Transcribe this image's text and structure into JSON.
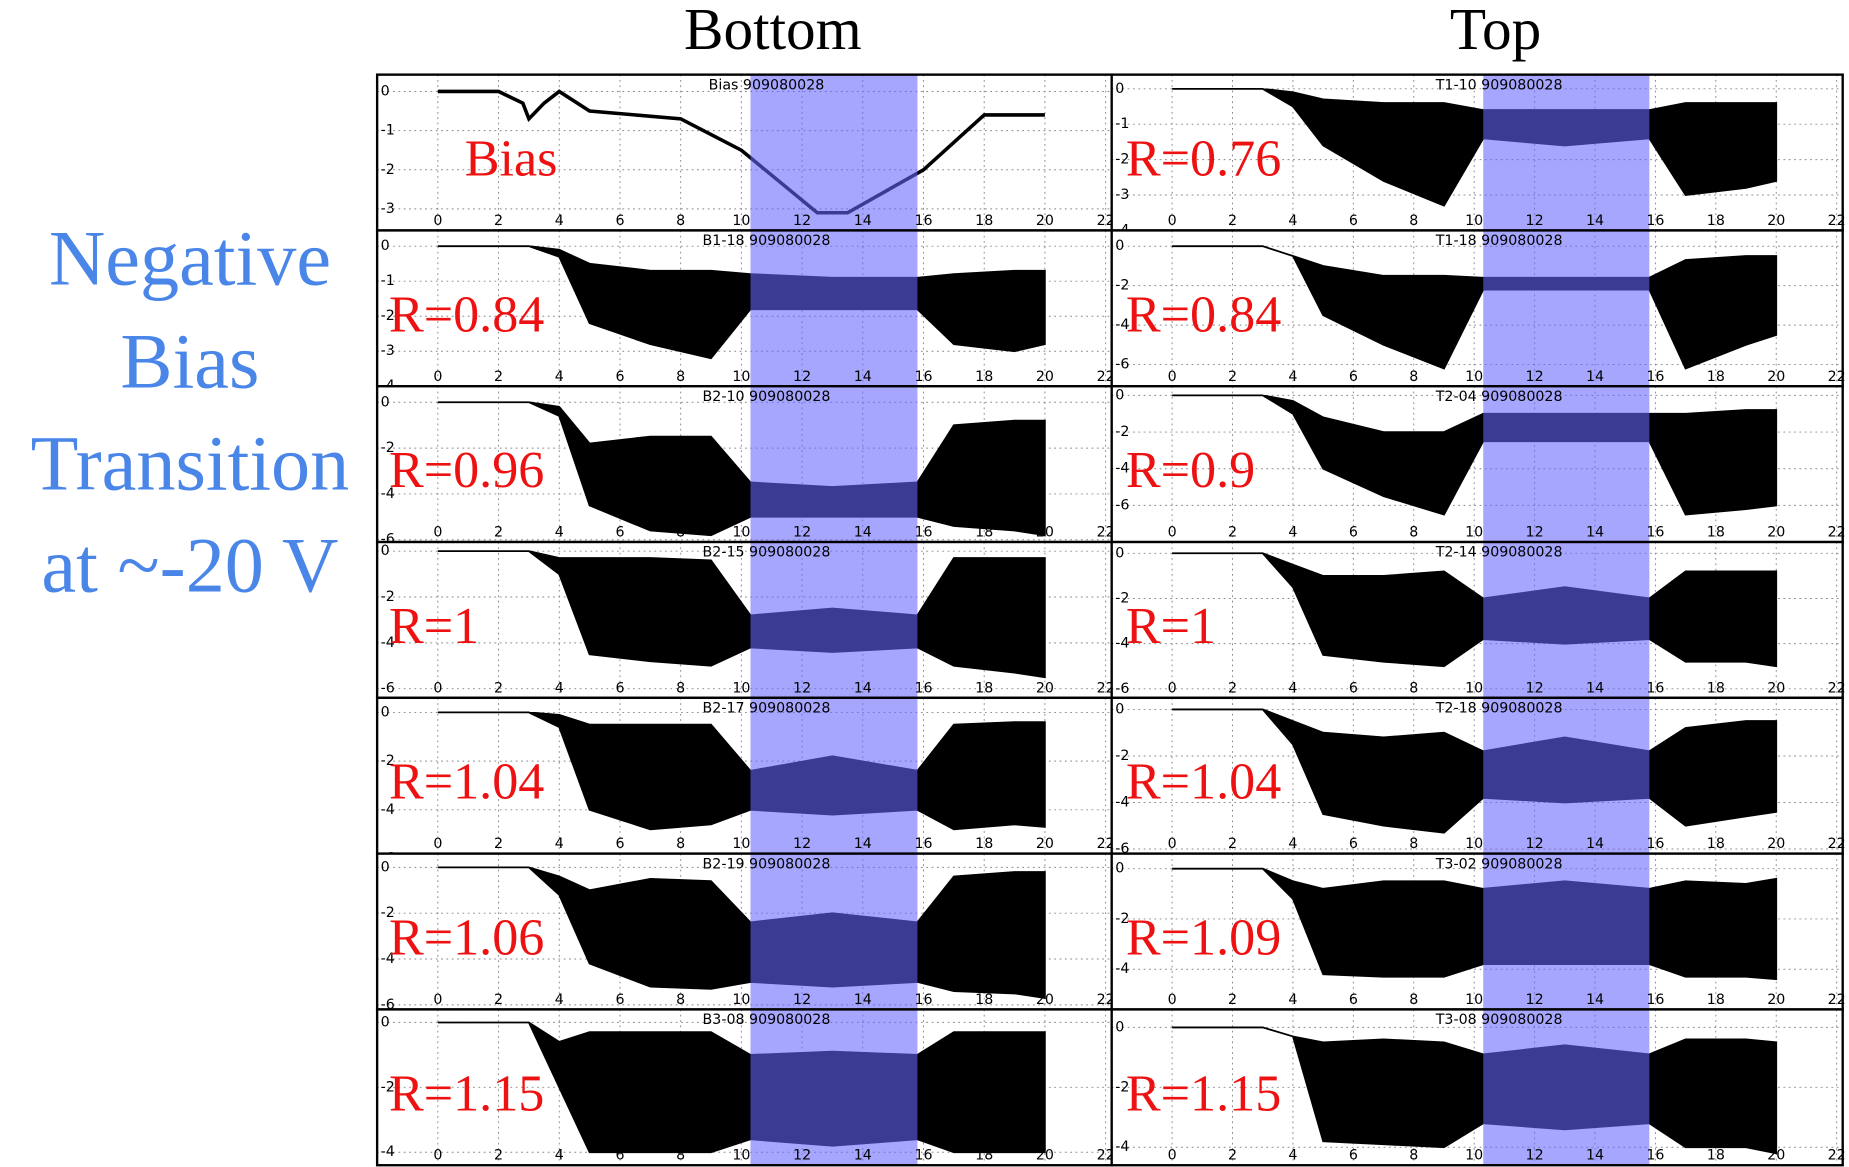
{
  "title_left": [
    "Negative",
    "Bias",
    "Transition",
    "at ~-20 V"
  ],
  "column_titles": [
    "Bottom",
    "Top"
  ],
  "chart_data": [
    {
      "type": "line",
      "title": "Bias 909080028",
      "annotation": "Bias",
      "color": "#000000",
      "grid": true,
      "shade": [
        10.3,
        15.8
      ],
      "shade_color": "#6666ff",
      "x": [
        0,
        2,
        2.8,
        3,
        3.5,
        4,
        5,
        8,
        10,
        12.5,
        13.5,
        16,
        18,
        20
      ],
      "values": [
        0,
        0,
        -0.3,
        -0.7,
        -0.3,
        0,
        -0.5,
        -0.7,
        -1.5,
        -3.1,
        -3.1,
        -2.0,
        -0.6,
        -0.6
      ],
      "xlim": [
        -2,
        22.2
      ],
      "xticks": [
        0,
        2,
        4,
        6,
        8,
        10,
        12,
        14,
        16,
        18,
        20,
        22
      ],
      "ylim": [
        -3.55,
        0.43
      ],
      "yticks": [
        0,
        -1,
        -2,
        -3
      ]
    },
    {
      "type": "band",
      "title": "B1-18 909080028",
      "annotation": "R=0.84",
      "color": "#000000",
      "grid": true,
      "shade": [
        10.3,
        15.8
      ],
      "shade_color": "#6666ff",
      "x": [
        0,
        3,
        4,
        5,
        7,
        9,
        10.3,
        13,
        15.8,
        17,
        19,
        20
      ],
      "high": [
        0,
        0,
        -0.1,
        -0.5,
        -0.7,
        -0.7,
        -0.8,
        -0.9,
        -0.9,
        -0.8,
        -0.7,
        -0.7
      ],
      "low": [
        0,
        0,
        -0.3,
        -2.2,
        -2.8,
        -3.2,
        -1.8,
        -1.8,
        -1.8,
        -2.8,
        -3.0,
        -2.8
      ],
      "xlim": [
        -2,
        22.2
      ],
      "xticks": [
        0,
        2,
        4,
        6,
        8,
        10,
        12,
        14,
        16,
        18,
        20,
        22
      ],
      "ylim": [
        -4,
        0.45
      ],
      "yticks": [
        0,
        -1,
        -2,
        -3,
        -4
      ]
    },
    {
      "type": "band",
      "title": "B2-10 909080028",
      "annotation": "R=0.96",
      "color": "#000000",
      "grid": true,
      "shade": [
        10.3,
        15.8
      ],
      "shade_color": "#6666ff",
      "x": [
        0,
        3,
        4,
        5,
        7,
        9,
        10.3,
        13,
        15.8,
        17,
        19,
        20
      ],
      "high": [
        0,
        0,
        -0.2,
        -1.8,
        -1.5,
        -1.5,
        -3.5,
        -3.7,
        -3.5,
        -1.0,
        -0.8,
        -0.8
      ],
      "low": [
        0,
        0,
        -0.6,
        -4.5,
        -5.6,
        -5.8,
        -5.0,
        -5.0,
        -5.0,
        -5.4,
        -5.6,
        -5.8
      ],
      "xlim": [
        -2,
        22.2
      ],
      "xticks": [
        0,
        2,
        4,
        6,
        8,
        10,
        12,
        14,
        16,
        18,
        20,
        22
      ],
      "ylim": [
        -6.1,
        0.7
      ],
      "yticks": [
        0,
        -2,
        -4,
        -6
      ]
    },
    {
      "type": "band",
      "title": "B2-15 909080028",
      "annotation": "R=1",
      "color": "#000000",
      "grid": true,
      "shade": [
        10.3,
        15.8
      ],
      "shade_color": "#6666ff",
      "x": [
        0,
        3,
        4,
        5,
        7,
        9,
        10.3,
        13,
        15.8,
        17,
        19,
        20
      ],
      "high": [
        0,
        0,
        -0.3,
        -0.3,
        -0.3,
        -0.4,
        -2.8,
        -2.5,
        -2.8,
        -0.3,
        -0.3,
        -0.3
      ],
      "low": [
        0,
        0,
        -1.0,
        -4.5,
        -4.8,
        -5.0,
        -4.2,
        -4.4,
        -4.2,
        -5.0,
        -5.3,
        -5.5
      ],
      "xlim": [
        -2,
        22.2
      ],
      "xticks": [
        0,
        2,
        4,
        6,
        8,
        10,
        12,
        14,
        16,
        18,
        20,
        22
      ],
      "ylim": [
        -6.4,
        0.4
      ],
      "yticks": [
        0,
        -2,
        -4,
        -6
      ]
    },
    {
      "type": "band",
      "title": "B2-17 909080028",
      "annotation": "R=1.04",
      "color": "#000000",
      "grid": true,
      "shade": [
        10.3,
        15.8
      ],
      "shade_color": "#6666ff",
      "x": [
        0,
        3,
        4,
        5,
        7,
        9,
        10.3,
        13,
        15.8,
        17,
        19,
        20
      ],
      "high": [
        0,
        0,
        -0.1,
        -0.5,
        -0.5,
        -0.5,
        -2.4,
        -1.8,
        -2.4,
        -0.5,
        -0.4,
        -0.4
      ],
      "low": [
        0,
        0,
        -0.6,
        -4.0,
        -4.8,
        -4.6,
        -4.0,
        -4.2,
        -4.0,
        -4.8,
        -4.6,
        -4.7
      ],
      "xlim": [
        -2,
        22.2
      ],
      "xticks": [
        0,
        2,
        4,
        6,
        8,
        10,
        12,
        14,
        16,
        18,
        20,
        22
      ],
      "ylim": [
        -5.8,
        0.6
      ],
      "yticks": [
        0,
        -2,
        -4,
        -6
      ]
    },
    {
      "type": "band",
      "title": "B2-19 909080028",
      "annotation": "R=1.06",
      "color": "#000000",
      "grid": true,
      "shade": [
        10.3,
        15.8
      ],
      "shade_color": "#6666ff",
      "x": [
        0,
        3,
        4,
        5,
        7,
        9,
        10.3,
        13,
        15.8,
        17,
        19,
        20
      ],
      "high": [
        0,
        0,
        -0.4,
        -1.0,
        -0.5,
        -0.6,
        -2.4,
        -2.0,
        -2.4,
        -0.4,
        -0.2,
        -0.2
      ],
      "low": [
        0,
        0,
        -1.2,
        -4.2,
        -5.2,
        -5.3,
        -5.0,
        -5.2,
        -5.0,
        -5.4,
        -5.5,
        -5.7
      ],
      "xlim": [
        -2,
        22.2
      ],
      "xticks": [
        0,
        2,
        4,
        6,
        8,
        10,
        12,
        14,
        16,
        18,
        20,
        22
      ],
      "ylim": [
        -6.2,
        0.6
      ],
      "yticks": [
        0,
        -2,
        -4,
        -6
      ]
    },
    {
      "type": "band",
      "title": "B3-08 909080028",
      "annotation": "R=1.15",
      "color": "#000000",
      "grid": true,
      "shade": [
        10.3,
        15.8
      ],
      "shade_color": "#6666ff",
      "x": [
        0,
        3,
        4,
        5,
        7,
        9,
        10.3,
        13,
        15.8,
        17,
        19,
        20
      ],
      "high": [
        0,
        0,
        -0.6,
        -0.3,
        -0.3,
        -0.3,
        -1.0,
        -0.9,
        -1.0,
        -0.3,
        -0.3,
        -0.3
      ],
      "low": [
        0,
        0,
        -2.0,
        -4.0,
        -4.0,
        -4.0,
        -3.6,
        -3.8,
        -3.6,
        -4.0,
        -4.0,
        -4.0
      ],
      "xlim": [
        -2,
        22.2
      ],
      "xticks": [
        0,
        2,
        4,
        6,
        8,
        10,
        12,
        14,
        16,
        18,
        20,
        22
      ],
      "ylim": [
        -4.4,
        0.4
      ],
      "yticks": [
        0,
        -2,
        -4
      ]
    },
    {
      "type": "band",
      "title": "T1-10 909080028",
      "annotation": "R=0.76",
      "color": "#000000",
      "grid": true,
      "shade": [
        10.3,
        15.8
      ],
      "shade_color": "#6666ff",
      "x": [
        0,
        3,
        4,
        5,
        7,
        9,
        10.3,
        13,
        15.8,
        17,
        19,
        20
      ],
      "high": [
        0,
        0,
        -0.1,
        -0.3,
        -0.4,
        -0.4,
        -0.6,
        -0.6,
        -0.6,
        -0.4,
        -0.4,
        -0.4
      ],
      "low": [
        0,
        0,
        -0.5,
        -1.6,
        -2.6,
        -3.3,
        -1.4,
        -1.6,
        -1.4,
        -3.0,
        -2.8,
        -2.6
      ],
      "xlim": [
        -2,
        22.2
      ],
      "xticks": [
        0,
        2,
        4,
        6,
        8,
        10,
        12,
        14,
        16,
        18,
        20,
        22
      ],
      "ylim": [
        -4,
        0.4
      ],
      "yticks": [
        0,
        -1,
        -2,
        -3,
        -4
      ]
    },
    {
      "type": "band",
      "title": "T1-18 909080028",
      "annotation": "R=0.84",
      "color": "#000000",
      "grid": true,
      "shade": [
        10.3,
        15.8
      ],
      "shade_color": "#6666ff",
      "x": [
        0,
        3,
        4,
        5,
        7,
        9,
        10.3,
        13,
        15.8,
        17,
        19,
        20
      ],
      "high": [
        0,
        0,
        -0.5,
        -1.0,
        -1.5,
        -1.5,
        -1.6,
        -1.6,
        -1.6,
        -0.7,
        -0.5,
        -0.5
      ],
      "low": [
        0,
        0,
        -0.5,
        -3.5,
        -5.0,
        -6.2,
        -2.2,
        -2.2,
        -2.2,
        -6.2,
        -5.0,
        -4.5
      ],
      "xlim": [
        -2,
        22.2
      ],
      "xticks": [
        0,
        2,
        4,
        6,
        8,
        10,
        12,
        14,
        16,
        18,
        20,
        22
      ],
      "ylim": [
        -7.1,
        0.8
      ],
      "yticks": [
        0,
        -2,
        -4,
        -6
      ]
    },
    {
      "type": "band",
      "title": "T2-04 909080028",
      "annotation": "R=0.9",
      "color": "#000000",
      "grid": true,
      "shade": [
        10.3,
        15.8
      ],
      "shade_color": "#6666ff",
      "x": [
        0,
        3,
        4,
        5,
        7,
        9,
        10.3,
        13,
        15.8,
        17,
        19,
        20
      ],
      "high": [
        0,
        0,
        -0.3,
        -1.2,
        -2.0,
        -2.0,
        -1.0,
        -1.0,
        -1.0,
        -1.0,
        -0.8,
        -0.8
      ],
      "low": [
        0,
        0,
        -1.0,
        -4.0,
        -5.5,
        -6.5,
        -2.5,
        -2.5,
        -2.5,
        -6.5,
        -6.2,
        -6.0
      ],
      "xlim": [
        -2,
        22.2
      ],
      "xticks": [
        0,
        2,
        4,
        6,
        8,
        10,
        12,
        14,
        16,
        18,
        20,
        22
      ],
      "ylim": [
        -8,
        0.5
      ],
      "yticks": [
        0,
        -2,
        -4,
        -6
      ]
    },
    {
      "type": "band",
      "title": "T2-14 909080028",
      "annotation": "R=1",
      "color": "#000000",
      "grid": true,
      "shade": [
        10.3,
        15.8
      ],
      "shade_color": "#6666ff",
      "x": [
        0,
        3,
        4,
        5,
        7,
        9,
        10.3,
        13,
        15.8,
        17,
        19,
        20
      ],
      "high": [
        0,
        0,
        -0.5,
        -1.0,
        -1.0,
        -0.8,
        -2.0,
        -1.5,
        -2.0,
        -0.8,
        -0.8,
        -0.8
      ],
      "low": [
        0,
        0,
        -1.5,
        -4.5,
        -4.8,
        -5.0,
        -3.8,
        -4.0,
        -3.8,
        -4.8,
        -4.8,
        -5.0
      ],
      "xlim": [
        -2,
        22.2
      ],
      "xticks": [
        0,
        2,
        4,
        6,
        8,
        10,
        12,
        14,
        16,
        18,
        20,
        22
      ],
      "ylim": [
        -6.4,
        0.5
      ],
      "yticks": [
        0,
        -2,
        -4,
        -6
      ]
    },
    {
      "type": "band",
      "title": "T2-18 909080028",
      "annotation": "R=1.04",
      "color": "#000000",
      "grid": true,
      "shade": [
        10.3,
        15.8
      ],
      "shade_color": "#6666ff",
      "x": [
        0,
        3,
        4,
        5,
        7,
        9,
        10.3,
        13,
        15.8,
        17,
        19,
        20
      ],
      "high": [
        0,
        0,
        -0.5,
        -1.0,
        -1.2,
        -1.0,
        -1.8,
        -1.2,
        -1.8,
        -0.8,
        -0.5,
        -0.5
      ],
      "low": [
        0,
        0,
        -1.5,
        -4.5,
        -5.0,
        -5.3,
        -3.8,
        -4.0,
        -3.8,
        -5.0,
        -4.6,
        -4.4
      ],
      "xlim": [
        -2,
        22.2
      ],
      "xticks": [
        0,
        2,
        4,
        6,
        8,
        10,
        12,
        14,
        16,
        18,
        20,
        22
      ],
      "ylim": [
        -6.2,
        0.5
      ],
      "yticks": [
        0,
        -2,
        -4,
        -6
      ]
    },
    {
      "type": "band",
      "title": "T3-02 909080028",
      "annotation": "R=1.09",
      "color": "#000000",
      "grid": true,
      "shade": [
        10.3,
        15.8
      ],
      "shade_color": "#6666ff",
      "x": [
        0,
        3,
        4,
        5,
        7,
        9,
        10.3,
        13,
        15.8,
        17,
        19,
        20
      ],
      "high": [
        0,
        0,
        -0.5,
        -0.8,
        -0.5,
        -0.5,
        -0.8,
        -0.5,
        -0.8,
        -0.5,
        -0.6,
        -0.4
      ],
      "low": [
        0,
        0,
        -1.2,
        -4.2,
        -4.3,
        -4.3,
        -3.8,
        -3.8,
        -3.8,
        -4.3,
        -4.3,
        -4.4
      ],
      "xlim": [
        -2,
        22.2
      ],
      "xticks": [
        0,
        2,
        4,
        6,
        8,
        10,
        12,
        14,
        16,
        18,
        20,
        22
      ],
      "ylim": [
        -5.6,
        0.6
      ],
      "yticks": [
        0,
        -2,
        -4
      ]
    },
    {
      "type": "band",
      "title": "T3-08 909080028",
      "annotation": "R=1.15",
      "color": "#000000",
      "grid": true,
      "shade": [
        10.3,
        15.8
      ],
      "shade_color": "#6666ff",
      "x": [
        0,
        3,
        4,
        5,
        7,
        9,
        10.3,
        13,
        15.8,
        17,
        19,
        20
      ],
      "high": [
        0,
        0,
        -0.3,
        -0.5,
        -0.4,
        -0.5,
        -0.9,
        -0.6,
        -0.9,
        -0.4,
        -0.4,
        -0.5
      ],
      "low": [
        0,
        0,
        -0.3,
        -3.8,
        -3.9,
        -4.0,
        -3.2,
        -3.4,
        -3.2,
        -4.0,
        -4.0,
        -4.2
      ],
      "xlim": [
        -2,
        22.2
      ],
      "xticks": [
        0,
        2,
        4,
        6,
        8,
        10,
        12,
        14,
        16,
        18,
        20,
        22
      ],
      "ylim": [
        -4.6,
        0.6
      ],
      "yticks": [
        0,
        -2,
        -4
      ]
    }
  ]
}
